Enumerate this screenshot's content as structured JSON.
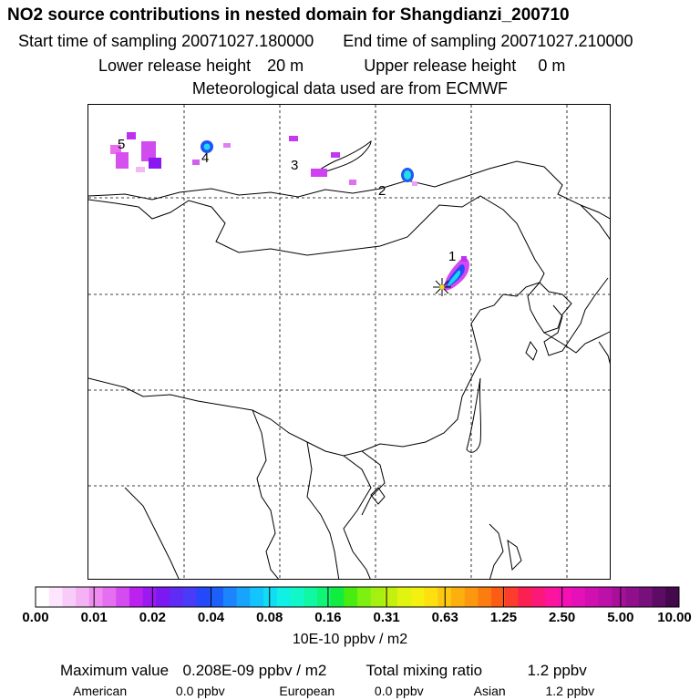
{
  "header": {
    "title": "NO2 source contributions in nested domain for Shangdianzi_200710",
    "start_label": "Start time of sampling",
    "start_value": "20071027.180000",
    "end_label": "End time of sampling",
    "end_value": "20071027.210000",
    "lower_label": "Lower release height",
    "lower_value": "20 m",
    "upper_label": "Upper release height",
    "upper_value": "0 m",
    "met": "Meteorological data used are from ECMWF"
  },
  "map": {
    "markers": [
      "1",
      "2",
      "3",
      "4",
      "5"
    ]
  },
  "colorbar": {
    "ticks": [
      "0.00",
      "0.01",
      "0.02",
      "0.04",
      "0.08",
      "0.16",
      "0.31",
      "0.63",
      "1.25",
      "2.50",
      "5.00",
      "10.00"
    ],
    "colors": [
      "#ffffff",
      "#fde6fd",
      "#f8ccf8",
      "#f4b2f4",
      "#ee8cf0",
      "#e46ff0",
      "#d24cf0",
      "#bb22f0",
      "#9a1af0",
      "#7c18f2",
      "#5e2cf4",
      "#4a3cf6",
      "#2448fa",
      "#1c60fc",
      "#1c84fc",
      "#18a4fc",
      "#14c4fc",
      "#10ddf4",
      "#10f0e4",
      "#10f8c8",
      "#10f8a4",
      "#10f478",
      "#10ec40",
      "#48ec10",
      "#7cf010",
      "#a4f010",
      "#c4f010",
      "#e0f410",
      "#f4f010",
      "#fce010",
      "#fcc810",
      "#fcb010",
      "#fc9810",
      "#fc7c10",
      "#fc5c14",
      "#fc3c2c",
      "#fc2050",
      "#fc1878",
      "#fc149c",
      "#f410b4",
      "#e410b8",
      "#d010b0",
      "#bc10a8",
      "#a8109c",
      "#90108c",
      "#78107c",
      "#5c0c64",
      "#44084c"
    ],
    "unit": "10E-10 ppbv / m2"
  },
  "stats": {
    "max_label": "Maximum value",
    "max_value": "0.208E-09 ppbv / m2",
    "total_label": "Total mixing ratio",
    "total_value": "1.2 ppbv"
  },
  "regions": {
    "american_label": "American",
    "american_value": "0.0 ppbv",
    "european_label": "European",
    "european_value": "0.0 ppbv",
    "asian_label": "Asian",
    "asian_value": "1.2 ppbv"
  }
}
